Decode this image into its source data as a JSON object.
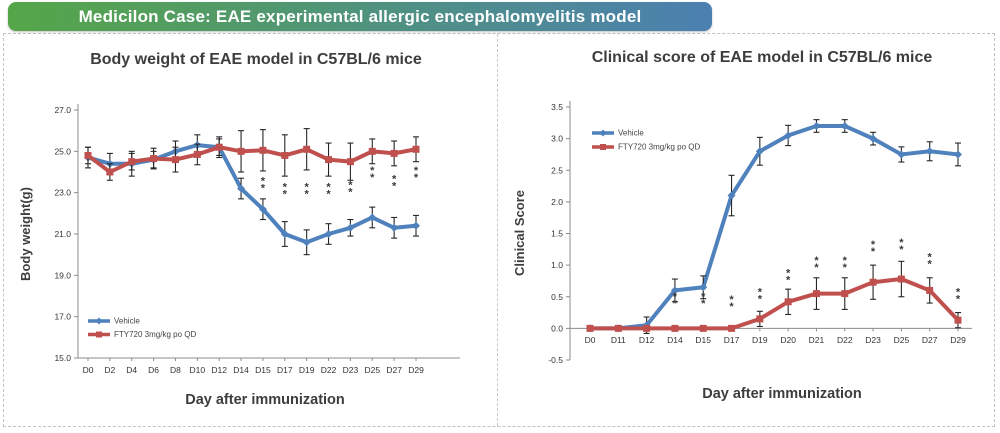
{
  "header": {
    "title": "Medicilon Case: EAE experimental allergic encephalomyelitis model",
    "gradient_start": "#55a648",
    "gradient_end": "#4b80b1",
    "text_color": "#ffffff"
  },
  "colors": {
    "vehicle": "#4F81BD",
    "fty720": "#C0504D",
    "error_bar": "#262626",
    "axis": "#8c8c8c",
    "text": "#3d3d3d",
    "asterisk": "#3a3a3a",
    "panel_border": "#bdc3c7"
  },
  "chart_data": [
    {
      "type": "line",
      "title": "Body weight of EAE model in C57BL/6 mice",
      "xlabel": "Day after immunization",
      "ylabel": "Body weight(g)",
      "ymin": 15.0,
      "ymax": 27.0,
      "baseline": 15.0,
      "grid": false,
      "legend_position": "bottom-left",
      "ytick_values": [
        27,
        25,
        23,
        21,
        19,
        17,
        15
      ],
      "ytick_labels": [
        "27.0",
        "25.0",
        "23.0",
        "21.0",
        "19.0",
        "17.0",
        "15.0"
      ],
      "categories": [
        "D0",
        "D2",
        "D4",
        "D6",
        "D8",
        "D10",
        "D12",
        "D14",
        "D15",
        "D17",
        "D19",
        "D22",
        "D23",
        "D25",
        "D27",
        "D29"
      ],
      "series": [
        {
          "name": "Vehicle",
          "color_key": "vehicle",
          "marker": "diamond",
          "values": [
            24.7,
            24.4,
            24.4,
            24.6,
            25.0,
            25.3,
            25.2,
            23.2,
            22.2,
            21.0,
            20.6,
            21.0,
            21.3,
            21.8,
            21.3,
            21.4
          ],
          "errors": [
            0.5,
            0.5,
            0.6,
            0.4,
            0.5,
            0.5,
            0.5,
            0.5,
            0.5,
            0.6,
            0.6,
            0.5,
            0.4,
            0.5,
            0.5,
            0.5
          ]
        },
        {
          "name": "FTY720 3mg/kg po QD",
          "color_key": "fty720",
          "marker": "square",
          "values": [
            24.8,
            24.0,
            24.5,
            24.65,
            24.6,
            24.85,
            25.2,
            25.0,
            25.05,
            24.8,
            25.1,
            24.6,
            24.5,
            25.0,
            24.9,
            25.1
          ],
          "errors": [
            0.4,
            0.4,
            0.4,
            0.5,
            0.6,
            0.5,
            0.4,
            1.0,
            1.0,
            1.0,
            1.0,
            0.8,
            0.9,
            0.6,
            0.6,
            0.6
          ]
        }
      ],
      "significance_marks": [
        {
          "category": "D15",
          "y": 23.4,
          "symbol": "**"
        },
        {
          "category": "D17",
          "y": 23.1,
          "symbol": "**"
        },
        {
          "category": "D19",
          "y": 23.1,
          "symbol": "**"
        },
        {
          "category": "D22",
          "y": 23.1,
          "symbol": "**"
        },
        {
          "category": "D23",
          "y": 23.2,
          "symbol": "**"
        },
        {
          "category": "D25",
          "y": 23.9,
          "symbol": "**"
        },
        {
          "category": "D27",
          "y": 23.5,
          "symbol": "**"
        },
        {
          "category": "D29",
          "y": 23.9,
          "symbol": "**"
        }
      ],
      "legend": [
        "Vehicle",
        "FTY720 3mg/kg po QD"
      ]
    },
    {
      "type": "line",
      "title": "Clinical score of EAE model in C57BL/6 mice",
      "xlabel": "Day after immunization",
      "ylabel": "Clinical Score",
      "ymin": -0.5,
      "ymax": 3.5,
      "baseline": 0.0,
      "grid": false,
      "legend_position": "top-left",
      "ytick_values": [
        3.5,
        3.0,
        2.5,
        2.0,
        1.5,
        1.0,
        0.5,
        0.0,
        -0.5
      ],
      "ytick_labels": [
        "3.5",
        "3.0",
        "2.5",
        "2.0",
        "1.5",
        "1.0",
        "0.5",
        "0.0",
        "-0.5"
      ],
      "categories": [
        "D0",
        "D11",
        "D12",
        "D14",
        "D15",
        "D17",
        "D19",
        "D20",
        "D21",
        "D22",
        "D23",
        "D25",
        "D27",
        "D29"
      ],
      "series": [
        {
          "name": "Vehicle",
          "color_key": "vehicle",
          "marker": "diamond",
          "values": [
            0,
            0,
            0.05,
            0.6,
            0.65,
            2.1,
            2.8,
            3.05,
            3.2,
            3.2,
            3.0,
            2.75,
            2.8,
            2.75
          ],
          "errors": [
            0,
            0,
            0.13,
            0.18,
            0.18,
            0.32,
            0.22,
            0.16,
            0.1,
            0.1,
            0.1,
            0.12,
            0.15,
            0.18
          ]
        },
        {
          "name": "FTY720 3mg/kg po QD",
          "color_key": "fty720",
          "marker": "square",
          "values": [
            0,
            0,
            0,
            0,
            0,
            0,
            0.15,
            0.42,
            0.55,
            0.55,
            0.73,
            0.78,
            0.6,
            0.13
          ],
          "errors": [
            0,
            0,
            0,
            0,
            0,
            0,
            0.12,
            0.2,
            0.25,
            0.25,
            0.27,
            0.28,
            0.2,
            0.12
          ]
        }
      ],
      "significance_marks": [
        {
          "category": "D14",
          "y": 0.45,
          "symbol": "**"
        },
        {
          "category": "D15",
          "y": 0.45,
          "symbol": "**"
        },
        {
          "category": "D17",
          "y": 0.4,
          "symbol": "**"
        },
        {
          "category": "D19",
          "y": 0.52,
          "symbol": "**"
        },
        {
          "category": "D20",
          "y": 0.82,
          "symbol": "**"
        },
        {
          "category": "D21",
          "y": 1.02,
          "symbol": "**"
        },
        {
          "category": "D22",
          "y": 1.02,
          "symbol": "**"
        },
        {
          "category": "D23",
          "y": 1.27,
          "symbol": "**"
        },
        {
          "category": "D25",
          "y": 1.3,
          "symbol": "**"
        },
        {
          "category": "D27",
          "y": 1.07,
          "symbol": "**"
        },
        {
          "category": "D29",
          "y": 0.52,
          "symbol": "**"
        }
      ],
      "legend": [
        "Vehicle",
        "FTY720 3mg/kg po QD"
      ]
    }
  ]
}
